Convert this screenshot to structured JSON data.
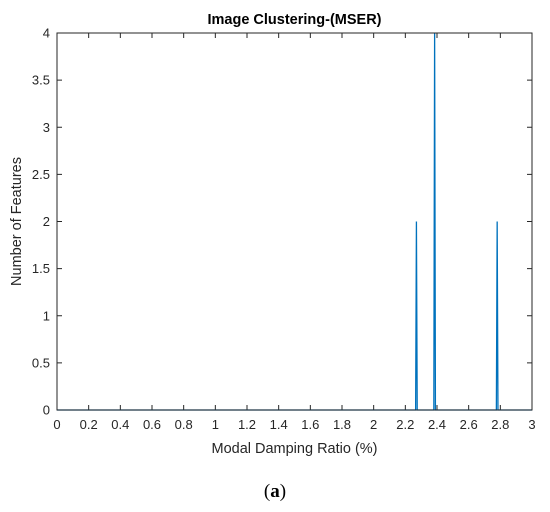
{
  "chart_data": {
    "type": "line",
    "title": "Image Clustering-(MSER)",
    "xlabel": "Modal Damping Ratio (%)",
    "ylabel": "Number of Features",
    "xlim": [
      0,
      3
    ],
    "ylim": [
      0,
      4
    ],
    "xticks": [
      "0",
      "0.2",
      "0.4",
      "0.6",
      "0.8",
      "1",
      "1.2",
      "1.4",
      "1.6",
      "1.8",
      "2",
      "2.2",
      "2.4",
      "2.6",
      "2.8",
      "3"
    ],
    "yticks": [
      "0",
      "0.5",
      "1",
      "1.5",
      "2",
      "2.5",
      "3",
      "3.5",
      "4"
    ],
    "grid": false,
    "series": [
      {
        "color": "#0072bd",
        "x": [
          0,
          2.265,
          2.27,
          2.275,
          2.38,
          2.385,
          2.39,
          2.775,
          2.78,
          2.785,
          3
        ],
        "y": [
          0,
          0,
          2,
          0,
          0,
          4,
          0,
          0,
          2,
          0,
          0
        ]
      }
    ]
  },
  "caption": {
    "open": "(",
    "letter": "a",
    "close": ")"
  }
}
